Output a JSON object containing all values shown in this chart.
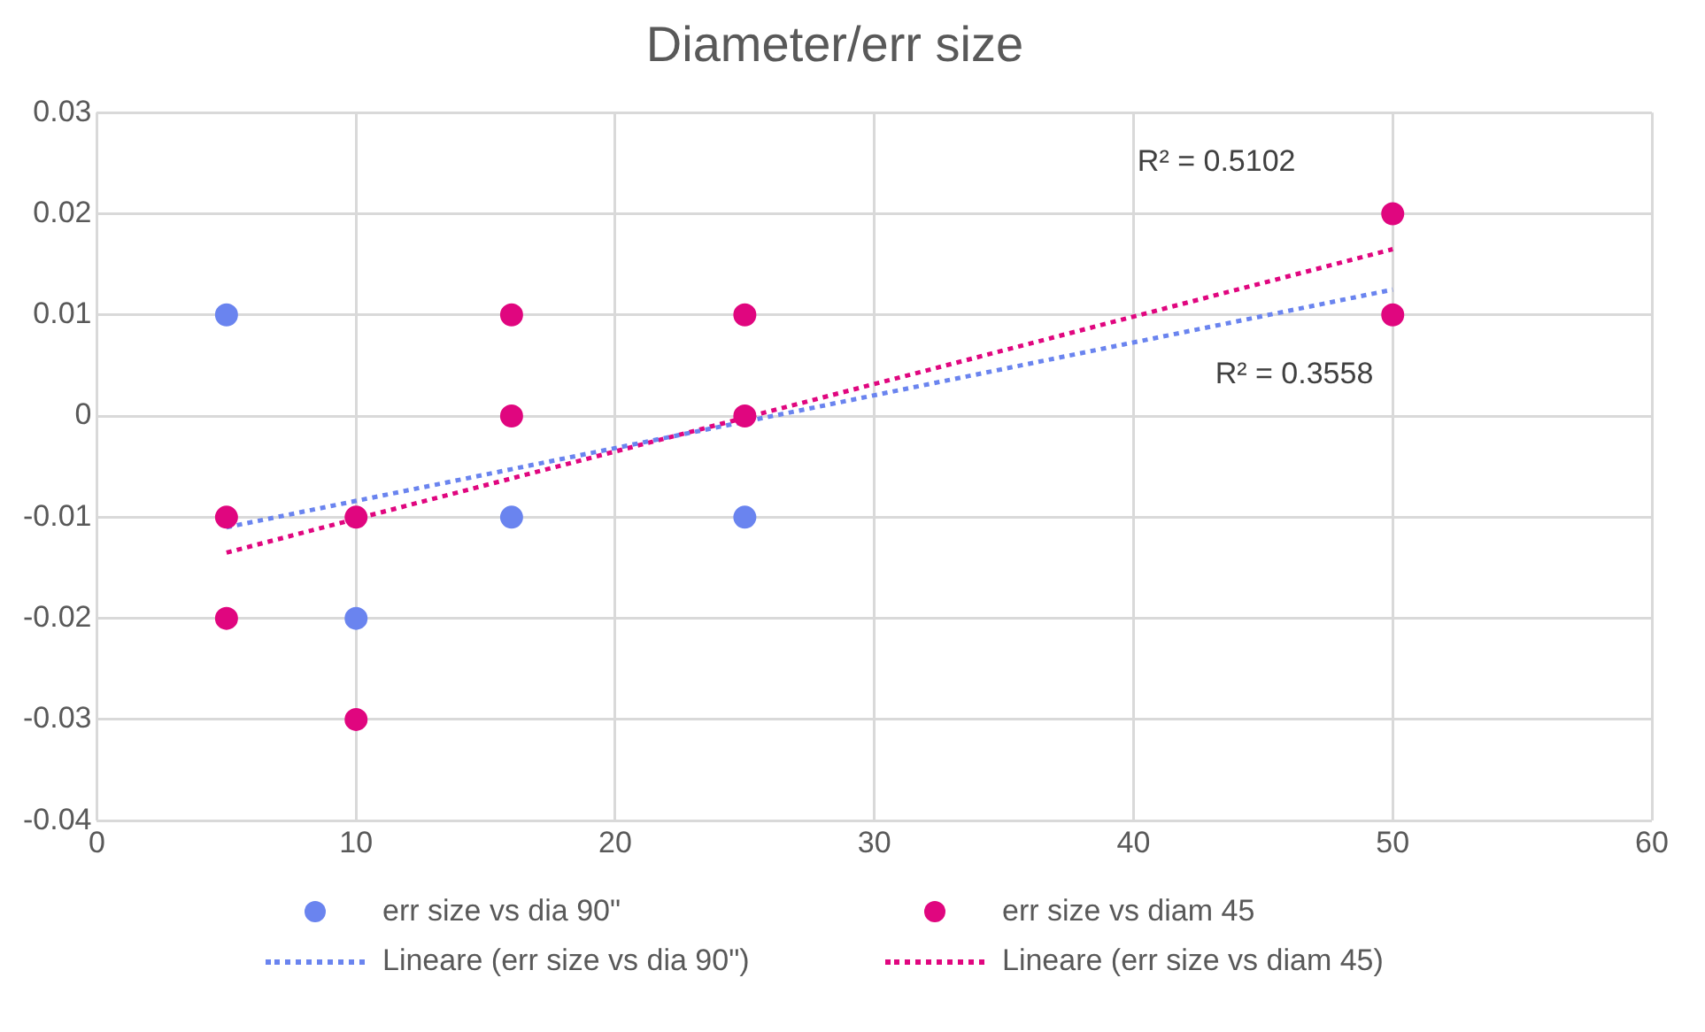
{
  "chart_data": {
    "type": "scatter",
    "title": "Diameter/err size",
    "xlim": [
      0,
      60
    ],
    "xticks": [
      0,
      10,
      20,
      30,
      40,
      50,
      60
    ],
    "ylim": [
      -0.04,
      0.03
    ],
    "yticks": [
      -0.04,
      -0.03,
      -0.02,
      -0.01,
      0,
      0.01,
      0.02,
      0.03
    ],
    "grid": true,
    "legend": "bottom",
    "marker": "circle",
    "series": [
      {
        "name": "err size vs dia 90\"",
        "color": "#6a84ef",
        "x": [
          5,
          10,
          16,
          25
        ],
        "values": [
          0.01,
          -0.02,
          -0.01,
          -0.01
        ]
      },
      {
        "name": "err size vs diam 45",
        "color": "#e0067f",
        "x": [
          5,
          5,
          10,
          10,
          16,
          16,
          25,
          25,
          50,
          50
        ],
        "values": [
          -0.01,
          -0.02,
          -0.01,
          -0.03,
          0.01,
          0,
          0.01,
          0,
          0.02,
          0.01
        ]
      },
      {
        "name": "Lineare (err size vs dia 90\")",
        "type": "line",
        "color": "#6a84ef",
        "x": [
          5,
          50
        ],
        "values": [
          -0.011,
          0.0125
        ],
        "marker": "none",
        "line_style": "dotted"
      },
      {
        "name": "Lineare (err size vs diam 45)",
        "type": "line",
        "color": "#e0067f",
        "x": [
          5,
          50
        ],
        "values": [
          -0.0135,
          0.0165
        ],
        "marker": "none",
        "line_style": "dotted"
      }
    ],
    "annotations": [
      "R² = 0.5102",
      "R² = 0.3558"
    ]
  }
}
